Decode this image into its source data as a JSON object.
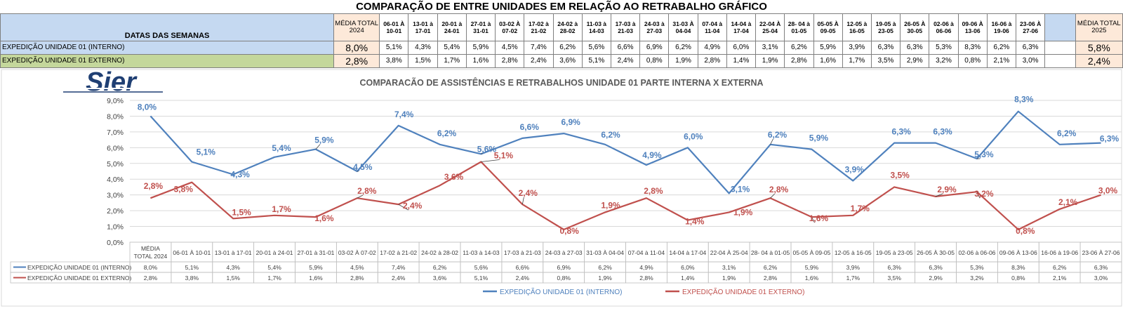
{
  "title": "COMPARAÇÃO DE ENTRE UNIDADES EM RELAÇÃO AO RETRABALHO GRÁFICO",
  "table": {
    "header_label": "DATAS DAS SEMANAS",
    "media_2024_label": "MÉDIA TOTAL 2024",
    "media_2025_label": "MÉDIA TOTAL 2025",
    "weeks": [
      "06-01 À 10-01",
      "13-01 à 17-01",
      "20-01 à 24-01",
      "27-01 à 31-01",
      "03-02 À 07-02",
      "17-02 à 21-02",
      "24-02 à 28-02",
      "11-03 à 14-03",
      "17-03 à 21-03",
      "24-03 à 27-03",
      "31-03 À 04-04",
      "07-04 à 11-04",
      "14-04 à 17-04",
      "22-04 À 25-04",
      "28- 04 à 01-05",
      "05-05 À 09-05",
      "12-05 à 16-05",
      "19-05 à 23-05",
      "26-05 À 30-05",
      "02-06 à 06-06",
      "09-06 À 13-06",
      "16-06 à 19-06",
      "23-06 À 27-06"
    ],
    "rows": [
      {
        "label": "EXPEDIÇÃO UNIDADE 01 (INTERNO)",
        "media_2024": "8,0%",
        "values": [
          "5,1%",
          "4,3%",
          "5,4%",
          "5,9%",
          "4,5%",
          "7,4%",
          "6,2%",
          "5,6%",
          "6,6%",
          "6,9%",
          "6,2%",
          "4,9%",
          "6,0%",
          "3,1%",
          "6,2%",
          "5,9%",
          "3,9%",
          "6,3%",
          "6,3%",
          "5,3%",
          "8,3%",
          "6,2%",
          "6,3%"
        ],
        "media_2025": "5,8%"
      },
      {
        "label": "EXPEDIÇÃO UNIDADE 01 EXTERNO)",
        "media_2024": "2,8%",
        "values": [
          "3,8%",
          "1,5%",
          "1,7%",
          "1,6%",
          "2,8%",
          "2,4%",
          "3,6%",
          "5,1%",
          "2,4%",
          "0,8%",
          "1,9%",
          "2,8%",
          "1,4%",
          "1,9%",
          "2,8%",
          "1,6%",
          "1,7%",
          "3,5%",
          "2,9%",
          "3,2%",
          "0,8%",
          "2,1%",
          "3,0%"
        ],
        "media_2025": "2,4%"
      }
    ]
  },
  "logo_text": "Sier",
  "chart_data": {
    "type": "line",
    "title": "COMPARACÃO DE ASSISTÊNCIAS E RETRABALHOS UNIDADE 01 PARTE INTERNA X EXTERNA",
    "categories": [
      "MÉDIA TOTAL 2024",
      "06-01 À 10-01",
      "13-01 à 17-01",
      "20-01 à 24-01",
      "27-01 à 31-01",
      "03-02 À 07-02",
      "17-02 à 21-02",
      "24-02 à 28-02",
      "11-03 à 14-03",
      "17-03 à 21-03",
      "24-03 à 27-03",
      "31-03 À 04-04",
      "07-04 à 11-04",
      "14-04 à 17-04",
      "22-04 À 25-04",
      "28- 04 à 01-05",
      "05-05 À 09-05",
      "12-05 à 16-05",
      "19-05 à 23-05",
      "26-05 À 30-05",
      "02-06 à 06-06",
      "09-06 À 13-06",
      "16-06 à 19-06",
      "23-06 À 27-06"
    ],
    "series": [
      {
        "name": "EXPEDIÇÃO UNIDADE 01 (INTERNO)",
        "color": "#4f81bd",
        "values": [
          8.0,
          5.1,
          4.3,
          5.4,
          5.9,
          4.5,
          7.4,
          6.2,
          5.6,
          6.6,
          6.9,
          6.2,
          4.9,
          6.0,
          3.1,
          6.2,
          5.9,
          3.9,
          6.3,
          6.3,
          5.3,
          8.3,
          6.2,
          6.3
        ],
        "labels": [
          "8,0%",
          "5,1%",
          "4,3%",
          "5,4%",
          "5,9%",
          "4,5%",
          "7,4%",
          "6,2%",
          "5,6%",
          "6,6%",
          "6,9%",
          "6,2%",
          "4,9%",
          "6,0%",
          "3,1%",
          "6,2%",
          "5,9%",
          "3,9%",
          "6,3%",
          "6,3%",
          "5,3%",
          "8,3%",
          "6,2%",
          "6,3%"
        ]
      },
      {
        "name": "EXPEDIÇÃO UNIDADE 01 EXTERNO)",
        "color": "#c0504d",
        "values": [
          2.8,
          3.8,
          1.5,
          1.7,
          1.6,
          2.8,
          2.4,
          3.6,
          5.1,
          2.4,
          0.8,
          1.9,
          2.8,
          1.4,
          1.9,
          2.8,
          1.6,
          1.7,
          3.5,
          2.9,
          3.2,
          0.8,
          2.1,
          3.0
        ],
        "labels": [
          "2,8%",
          "3,8%",
          "1,5%",
          "1,7%",
          "1,6%",
          "2,8%",
          "2,4%",
          "3,6%",
          "5,1%",
          "2,4%",
          "0,8%",
          "1,9%",
          "2,8%",
          "1,4%",
          "1,9%",
          "2,8%",
          "1,6%",
          "1,7%",
          "3,5%",
          "2,9%",
          "3,2%",
          "0,8%",
          "2,1%",
          "3,0%"
        ]
      }
    ],
    "ylim": [
      0,
      9
    ],
    "yticks": [
      "0,0%",
      "1,0%",
      "2,0%",
      "3,0%",
      "4,0%",
      "5,0%",
      "6,0%",
      "7,0%",
      "8,0%",
      "9,0%"
    ],
    "grid": true,
    "legend_placement": "bottom",
    "data_table": true
  }
}
